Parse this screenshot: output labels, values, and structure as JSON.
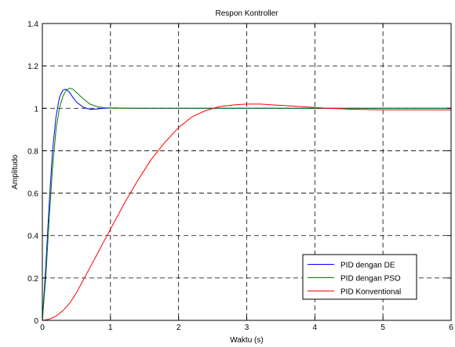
{
  "chart_data": {
    "type": "line",
    "title": "Respon Kontroller",
    "xlabel": "Waktu (s)",
    "ylabel": "Amplitudo",
    "xlim": [
      0,
      6
    ],
    "ylim": [
      0,
      1.4
    ],
    "xticks": [
      0,
      1,
      2,
      3,
      4,
      5,
      6
    ],
    "xtick_labels": [
      "0",
      "1",
      "2",
      "3",
      "4",
      "5",
      "6"
    ],
    "yticks": [
      0,
      0.2,
      0.4,
      0.6,
      0.8,
      1,
      1.2,
      1.4
    ],
    "ytick_labels": [
      "0",
      "0.2",
      "0.4",
      "0.6",
      "0.8",
      "1",
      "1.2",
      "1.4"
    ],
    "grid": true,
    "legend_position": "bottom-right",
    "series": [
      {
        "name": "PID dengan DE",
        "color": "#0000ff",
        "x": [
          0,
          0.05,
          0.1,
          0.15,
          0.2,
          0.25,
          0.3,
          0.35,
          0.4,
          0.45,
          0.5,
          0.6,
          0.7,
          0.8,
          0.9,
          1.0,
          1.2,
          1.5,
          2.0,
          3.0,
          4.0,
          5.0,
          6.0
        ],
        "y": [
          0,
          0.25,
          0.55,
          0.8,
          0.96,
          1.05,
          1.085,
          1.09,
          1.075,
          1.05,
          1.03,
          1.005,
          0.995,
          0.997,
          1.0,
          1.002,
          1.001,
          1.0,
          1.0,
          1.0,
          1.0,
          1.0,
          1.0
        ]
      },
      {
        "name": "PID dengan PSO",
        "color": "#008000",
        "x": [
          0,
          0.05,
          0.1,
          0.15,
          0.2,
          0.25,
          0.3,
          0.35,
          0.4,
          0.45,
          0.5,
          0.6,
          0.7,
          0.8,
          0.9,
          1.0,
          1.2,
          1.5,
          2.0,
          3.0,
          4.0,
          5.0,
          6.0
        ],
        "y": [
          0,
          0.2,
          0.48,
          0.72,
          0.9,
          1.0,
          1.055,
          1.085,
          1.095,
          1.09,
          1.075,
          1.045,
          1.02,
          1.008,
          1.003,
          1.001,
          1.0,
          1.0,
          1.0,
          1.0,
          1.0,
          1.0,
          1.0
        ]
      },
      {
        "name": "PID Konventional",
        "color": "#ff0000",
        "x": [
          0,
          0.1,
          0.2,
          0.3,
          0.4,
          0.5,
          0.6,
          0.7,
          0.8,
          0.9,
          1.0,
          1.2,
          1.4,
          1.6,
          1.8,
          2.0,
          2.2,
          2.4,
          2.6,
          2.8,
          3.0,
          3.2,
          3.4,
          3.6,
          3.8,
          4.0,
          4.2,
          4.5,
          5.0,
          5.5,
          6.0
        ],
        "y": [
          0,
          0.005,
          0.02,
          0.045,
          0.08,
          0.13,
          0.19,
          0.25,
          0.31,
          0.37,
          0.43,
          0.55,
          0.66,
          0.76,
          0.84,
          0.91,
          0.96,
          0.99,
          1.008,
          1.016,
          1.02,
          1.02,
          1.016,
          1.012,
          1.008,
          1.004,
          1.0,
          0.996,
          0.993,
          0.993,
          0.993
        ]
      }
    ]
  }
}
